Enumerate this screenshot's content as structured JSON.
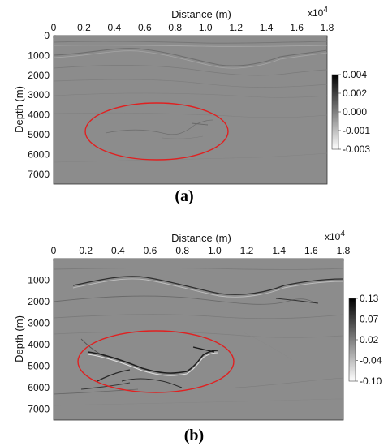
{
  "panels": [
    {
      "caption": "(a)",
      "chart_data": {
        "type": "heatmap",
        "xlabel": "Distance (m)",
        "ylabel": "Depth (m)",
        "x_scale_label": "x10",
        "x_scale_exp": "4",
        "x_ticks": [
          "0",
          "0.2",
          "0.4",
          "0.6",
          "0.8",
          "1.0",
          "1.2",
          "1.4",
          "1.6",
          "1.8"
        ],
        "xlim": [
          0,
          1.8
        ],
        "y_ticks": [
          "0",
          "1000",
          "2000",
          "3000",
          "4000",
          "5000",
          "6000",
          "7000"
        ],
        "ylim": [
          0,
          7500
        ],
        "colorbar_ticks": [
          "0.004",
          "0.002",
          "0.000",
          "-0.001",
          "-0.003"
        ],
        "colormap": "gray",
        "annotation": "red ellipse",
        "annotation_color": "#e02020"
      }
    },
    {
      "caption": "(b)",
      "chart_data": {
        "type": "heatmap",
        "xlabel": "Distance (m)",
        "ylabel": "Depth (m)",
        "x_scale_label": "x10",
        "x_scale_exp": "4",
        "x_ticks": [
          "0",
          "0.2",
          "0.4",
          "0.6",
          "0.8",
          "1.0",
          "1.2",
          "1.4",
          "1.6",
          "1.8"
        ],
        "xlim": [
          0,
          1.8
        ],
        "y_ticks": [
          "1000",
          "2000",
          "3000",
          "4000",
          "5000",
          "6000",
          "7000"
        ],
        "ylim": [
          0,
          7500
        ],
        "colorbar_ticks": [
          "0.13",
          "0.07",
          "0.02",
          "-0.04",
          "-0.10"
        ],
        "colormap": "gray",
        "annotation": "red ellipse",
        "annotation_color": "#e02020"
      }
    }
  ]
}
